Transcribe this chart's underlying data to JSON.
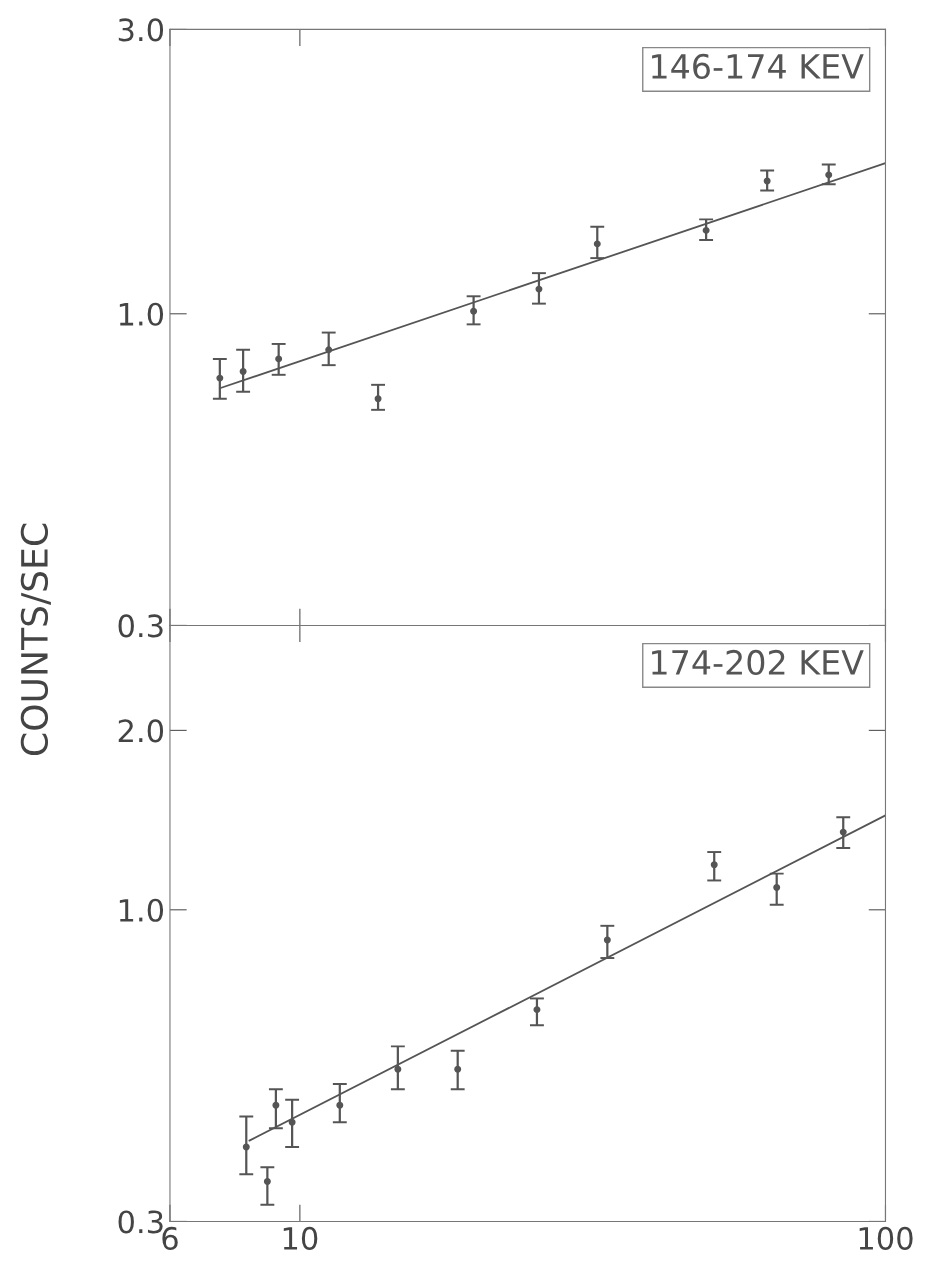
{
  "chart_data": [
    {
      "type": "scatter",
      "ylabel": "COUNTS/SEC",
      "annotations": [
        "146-174 KEV"
      ],
      "log": "xy",
      "grid": false,
      "legend": false,
      "tick_labels": "y",
      "xlim": [
        6,
        100
      ],
      "xticks": [
        6,
        10,
        100
      ],
      "ylim": [
        0.3,
        3.0
      ],
      "yticks": [
        0.3,
        {
          "value": 1.0,
          "label": "1.0"
        },
        {
          "value": 3.0,
          "label": "3.0"
        }
      ],
      "series": [
        {
          "type": "scatter",
          "marker": "circle",
          "color": "#555555",
          "x": [
            7.3,
            8.0,
            9.2,
            11.2,
            13.6,
            19.8,
            25.6,
            32.2,
            49.4,
            62.8,
            80.0
          ],
          "values": [
            0.78,
            0.8,
            0.84,
            0.87,
            0.72,
            1.01,
            1.1,
            1.31,
            1.38,
            1.67,
            1.71
          ],
          "errors": [
            [
              0.72,
              0.84
            ],
            [
              0.74,
              0.87
            ],
            [
              0.79,
              0.89
            ],
            [
              0.82,
              0.93
            ],
            [
              0.69,
              0.76
            ],
            [
              0.96,
              1.07
            ],
            [
              1.04,
              1.17
            ],
            [
              1.24,
              1.4
            ],
            [
              1.33,
              1.44
            ],
            [
              1.61,
              1.74
            ],
            [
              1.65,
              1.78
            ]
          ]
        },
        {
          "type": "line",
          "color": "#555555",
          "x": [
            7.3,
            100
          ],
          "values": [
            0.75,
            1.79
          ]
        }
      ]
    },
    {
      "type": "scatter",
      "annotations": [
        "174-202 KEV"
      ],
      "log": "xy",
      "grid": false,
      "legend": false,
      "xlim": [
        6,
        100
      ],
      "xticks": [
        6,
        10,
        100
      ],
      "ylim": [
        0.3,
        3.0
      ],
      "yticks": [
        0.3,
        {
          "value": 1.0,
          "label": "1.0"
        },
        {
          "value": 2.0,
          "label": "2.0"
        }
      ],
      "series": [
        {
          "type": "scatter",
          "marker": "circle",
          "color": "#555555",
          "x": [
            8.1,
            8.8,
            9.1,
            9.7,
            11.7,
            14.7,
            18.6,
            25.4,
            33.5,
            51.0,
            65.2,
            84.7
          ],
          "values": [
            0.4,
            0.35,
            0.47,
            0.44,
            0.47,
            0.54,
            0.54,
            0.68,
            0.89,
            1.19,
            1.09,
            1.35
          ],
          "errors": [
            [
              0.36,
              0.45
            ],
            [
              0.32,
              0.37
            ],
            [
              0.43,
              0.5
            ],
            [
              0.4,
              0.48
            ],
            [
              0.44,
              0.51
            ],
            [
              0.5,
              0.59
            ],
            [
              0.5,
              0.58
            ],
            [
              0.64,
              0.71
            ],
            [
              0.83,
              0.94
            ],
            [
              1.12,
              1.25
            ],
            [
              1.02,
              1.15
            ],
            [
              1.27,
              1.43
            ]
          ]
        },
        {
          "type": "line",
          "color": "#555555",
          "x": [
            8.2,
            100
          ],
          "values": [
            0.41,
            1.44
          ]
        }
      ]
    }
  ]
}
